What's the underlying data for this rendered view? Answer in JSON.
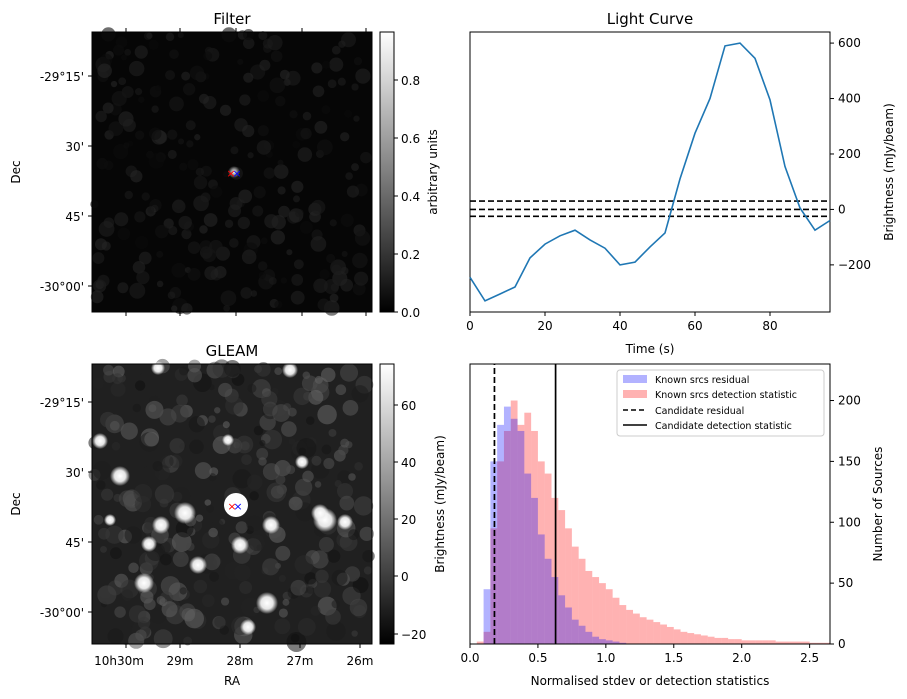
{
  "chart_data": [
    {
      "type": "heatmap",
      "title": "Filter",
      "ylabel": "Dec",
      "yticks": [
        "-29°15'",
        "30'",
        "45'",
        "-30°00'"
      ],
      "colorbar": {
        "label": "arbitrary units",
        "range": [
          0,
          0.97
        ],
        "ticks": [
          "0.0",
          "0.2",
          "0.4",
          "0.6",
          "0.8"
        ]
      },
      "markers": [
        {
          "label": "×",
          "color": "#ff0000"
        },
        {
          "label": "×",
          "color": "#0000ff"
        }
      ]
    },
    {
      "type": "line",
      "title": "Light Curve",
      "xlabel": "Time (s)",
      "ylabel": "Brightness (mJy/beam)",
      "xlim": [
        0,
        96
      ],
      "ylim": [
        -370,
        640
      ],
      "xticks": [
        "0",
        "20",
        "40",
        "60",
        "80"
      ],
      "yticks": [
        "−200",
        "0",
        "200",
        "400",
        "600"
      ],
      "series": [
        {
          "color": "#1f77b4",
          "x": [
            0,
            4,
            8,
            12,
            16,
            20,
            24,
            28,
            32,
            36,
            40,
            44,
            48,
            52,
            56,
            60,
            64,
            68,
            72,
            76,
            80,
            84,
            88,
            92,
            96
          ],
          "y": [
            -245,
            -330,
            -305,
            -280,
            -175,
            -125,
            -95,
            -75,
            -110,
            -140,
            -200,
            -190,
            -135,
            -85,
            110,
            275,
            400,
            590,
            600,
            545,
            395,
            155,
            5,
            -75,
            -40
          ]
        }
      ],
      "hlines": [
        {
          "y": 30,
          "style": "dashed",
          "color": "#000000"
        },
        {
          "y": 0,
          "style": "dashed",
          "color": "#000000"
        },
        {
          "y": -25,
          "style": "dashed",
          "color": "#000000"
        }
      ]
    },
    {
      "type": "heatmap",
      "title": "GLEAM",
      "xlabel": "RA",
      "ylabel": "Dec",
      "yticks": [
        "-29°15'",
        "30'",
        "45'",
        "-30°00'"
      ],
      "xticks": [
        "10h30m",
        "29m",
        "28m",
        "27m",
        "26m"
      ],
      "colorbar": {
        "label": "Brightness (mJy/beam)",
        "range": [
          -25,
          74
        ],
        "ticks": [
          "−20",
          "0",
          "20",
          "40",
          "60"
        ]
      },
      "markers": [
        {
          "label": "×",
          "color": "#ff0000"
        },
        {
          "label": "×",
          "color": "#0000ff"
        }
      ]
    },
    {
      "type": "histogram",
      "xlabel": "Normalised stdev or detection statistics",
      "ylabel_right": "Number of Sources",
      "ylabel_left": "Brightness (mJy/beam)",
      "xlim": [
        0,
        2.65
      ],
      "ylim": [
        0,
        230
      ],
      "xticks": [
        "0.0",
        "0.5",
        "1.0",
        "1.5",
        "2.0",
        "2.5"
      ],
      "yticks": [
        "0",
        "50",
        "100",
        "150",
        "200"
      ],
      "bin_width": 0.05,
      "series": [
        {
          "name": "Known srcs residual",
          "color": "#0000ff",
          "alpha": 0.3,
          "bins_start": 0.0,
          "counts": [
            0,
            0,
            45,
            150,
            180,
            195,
            185,
            175,
            140,
            120,
            90,
            70,
            55,
            40,
            30,
            20,
            15,
            10,
            6,
            4,
            3,
            2,
            1
          ]
        },
        {
          "name": "Known srcs detection statistic",
          "color": "#ff0000",
          "alpha": 0.3,
          "bins_start": 0.0,
          "counts": [
            0,
            2,
            10,
            95,
            150,
            175,
            200,
            180,
            190,
            175,
            150,
            140,
            120,
            110,
            95,
            80,
            70,
            60,
            55,
            50,
            45,
            38,
            32,
            28,
            25,
            22,
            20,
            18,
            16,
            14,
            12,
            10,
            9,
            8,
            7,
            6,
            5,
            5,
            4,
            4,
            3,
            3,
            3,
            3,
            3,
            2,
            2,
            2,
            2,
            2,
            1,
            1,
            1
          ]
        },
        {
          "name": "Candidate residual",
          "style": "dashed",
          "value": 0.18,
          "color": "#000000"
        },
        {
          "name": "Candidate detection statistic",
          "style": "solid",
          "value": 0.63,
          "color": "#000000"
        }
      ]
    }
  ]
}
